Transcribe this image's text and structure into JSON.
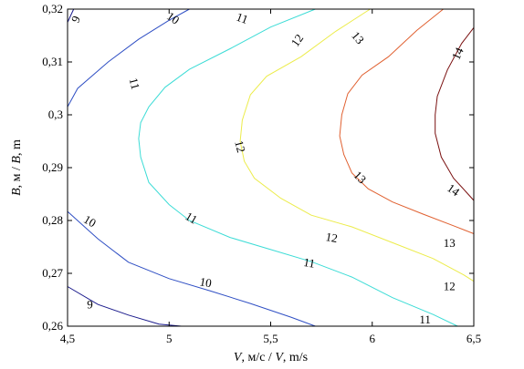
{
  "chart_data": {
    "type": "contour",
    "title": "",
    "xlabel_parts": [
      {
        "text": "V",
        "italic": true
      },
      {
        "text": ", м/с / ",
        "italic": false
      },
      {
        "text": "V",
        "italic": true
      },
      {
        "text": ", m/s",
        "italic": false
      }
    ],
    "ylabel_parts": [
      {
        "text": "B",
        "italic": true
      },
      {
        "text": ", м / ",
        "italic": false
      },
      {
        "text": "B",
        "italic": true
      },
      {
        "text": ", m",
        "italic": false
      }
    ],
    "xlim": [
      4.5,
      6.5
    ],
    "ylim": [
      0.26,
      0.32
    ],
    "x_ticks": [
      {
        "value": 4.5,
        "label": "4,5"
      },
      {
        "value": 5,
        "label": "5"
      },
      {
        "value": 5.5,
        "label": "5,5"
      },
      {
        "value": 6,
        "label": "6"
      },
      {
        "value": 6.5,
        "label": "6,5"
      }
    ],
    "y_ticks": [
      {
        "value": 0.26,
        "label": "0,26"
      },
      {
        "value": 0.27,
        "label": "0,27"
      },
      {
        "value": 0.28,
        "label": "0,28"
      },
      {
        "value": 0.29,
        "label": "0,29"
      },
      {
        "value": 0.3,
        "label": "0,3"
      },
      {
        "value": 0.31,
        "label": "0,31"
      },
      {
        "value": 0.32,
        "label": "0,32"
      }
    ],
    "grid": false,
    "contours": [
      {
        "level": "9",
        "color": "#1a1a8c",
        "segments": [
          [
            [
              4.5,
              0.3175
            ],
            [
              4.53,
              0.32
            ]
          ],
          [
            [
              4.5,
              0.2675
            ],
            [
              4.65,
              0.2641
            ],
            [
              4.8,
              0.2621
            ],
            [
              4.95,
              0.2604
            ],
            [
              5.06,
              0.26
            ]
          ]
        ]
      },
      {
        "level": "10",
        "color": "#2f4fc4",
        "segments": [
          [
            [
              4.5,
              0.3015
            ],
            [
              4.55,
              0.305
            ],
            [
              4.7,
              0.31
            ],
            [
              4.85,
              0.3143
            ],
            [
              5.0,
              0.3179
            ],
            [
              5.1,
              0.32
            ]
          ],
          [
            [
              4.5,
              0.2817
            ],
            [
              4.65,
              0.2765
            ],
            [
              4.8,
              0.2721
            ],
            [
              5.0,
              0.269
            ],
            [
              5.2,
              0.2667
            ],
            [
              5.4,
              0.2643
            ],
            [
              5.6,
              0.2617
            ],
            [
              5.72,
              0.26
            ]
          ]
        ]
      },
      {
        "level": "11",
        "color": "#3cdcd6",
        "segments": [
          [
            [
              5.72,
              0.32
            ],
            [
              5.5,
              0.3166
            ],
            [
              5.3,
              0.3125
            ],
            [
              5.1,
              0.3086
            ],
            [
              4.98,
              0.3052
            ],
            [
              4.9,
              0.3015
            ],
            [
              4.86,
              0.2985
            ],
            [
              4.85,
              0.2955
            ],
            [
              4.86,
              0.292
            ],
            [
              4.9,
              0.2872
            ],
            [
              5.0,
              0.283
            ],
            [
              5.1,
              0.28
            ],
            [
              5.3,
              0.2768
            ],
            [
              5.5,
              0.2745
            ],
            [
              5.7,
              0.2722
            ],
            [
              5.9,
              0.2693
            ],
            [
              6.1,
              0.2654
            ],
            [
              6.3,
              0.2622
            ],
            [
              6.42,
              0.26
            ]
          ]
        ]
      },
      {
        "level": "12",
        "color": "#ecec4a",
        "segments": [
          [
            [
              5.99,
              0.32
            ],
            [
              5.82,
              0.3158
            ],
            [
              5.65,
              0.311
            ],
            [
              5.48,
              0.3073
            ],
            [
              5.4,
              0.3038
            ],
            [
              5.36,
              0.299
            ],
            [
              5.35,
              0.295
            ],
            [
              5.37,
              0.2912
            ],
            [
              5.42,
              0.288
            ],
            [
              5.55,
              0.2842
            ],
            [
              5.7,
              0.281
            ],
            [
              5.9,
              0.2788
            ],
            [
              6.1,
              0.2758
            ],
            [
              6.3,
              0.2728
            ],
            [
              6.45,
              0.2697
            ],
            [
              6.5,
              0.2685
            ]
          ]
        ]
      },
      {
        "level": "13",
        "color": "#e06030",
        "segments": [
          [
            [
              6.35,
              0.32
            ],
            [
              6.22,
              0.316
            ],
            [
              6.08,
              0.311
            ],
            [
              5.95,
              0.3075
            ],
            [
              5.88,
              0.304
            ],
            [
              5.85,
              0.3
            ],
            [
              5.84,
              0.296
            ],
            [
              5.86,
              0.2925
            ],
            [
              5.9,
              0.289
            ],
            [
              5.98,
              0.286
            ],
            [
              6.1,
              0.2835
            ],
            [
              6.25,
              0.2812
            ],
            [
              6.4,
              0.279
            ],
            [
              6.5,
              0.2775
            ]
          ]
        ]
      },
      {
        "level": "14",
        "color": "#7a1010",
        "segments": [
          [
            [
              6.5,
              0.3165
            ],
            [
              6.44,
              0.3135
            ],
            [
              6.37,
              0.3085
            ],
            [
              6.32,
              0.3035
            ],
            [
              6.31,
              0.3
            ],
            [
              6.31,
              0.2965
            ],
            [
              6.34,
              0.292
            ],
            [
              6.4,
              0.288
            ],
            [
              6.46,
              0.2855
            ],
            [
              6.5,
              0.2838
            ]
          ]
        ]
      }
    ],
    "contour_labels": [
      {
        "text": "9",
        "x": 4.54,
        "y": 0.3181,
        "angle": -65
      },
      {
        "text": "10",
        "x": 5.02,
        "y": 0.3183,
        "angle": 35
      },
      {
        "text": "11",
        "x": 5.36,
        "y": 0.3183,
        "angle": 20
      },
      {
        "text": "12",
        "x": 5.63,
        "y": 0.3141,
        "angle": -55
      },
      {
        "text": "13",
        "x": 5.93,
        "y": 0.3146,
        "angle": 50
      },
      {
        "text": "14",
        "x": 6.42,
        "y": 0.3116,
        "angle": -65
      },
      {
        "text": "11",
        "x": 4.83,
        "y": 0.3059,
        "angle": 75
      },
      {
        "text": "12",
        "x": 5.35,
        "y": 0.294,
        "angle": 75
      },
      {
        "text": "13",
        "x": 5.94,
        "y": 0.2882,
        "angle": 45
      },
      {
        "text": "14",
        "x": 6.4,
        "y": 0.2858,
        "angle": 35
      },
      {
        "text": "11",
        "x": 5.11,
        "y": 0.2805,
        "angle": 30
      },
      {
        "text": "10",
        "x": 4.61,
        "y": 0.2799,
        "angle": 30
      },
      {
        "text": "12",
        "x": 5.8,
        "y": 0.2768,
        "angle": 10
      },
      {
        "text": "13",
        "x": 6.38,
        "y": 0.2758,
        "angle": 0
      },
      {
        "text": "11",
        "x": 5.69,
        "y": 0.272,
        "angle": 10
      },
      {
        "text": "12",
        "x": 6.38,
        "y": 0.2676,
        "angle": 0
      },
      {
        "text": "10",
        "x": 5.18,
        "y": 0.2683,
        "angle": 10
      },
      {
        "text": "9",
        "x": 4.61,
        "y": 0.2641,
        "angle": 0
      },
      {
        "text": "11",
        "x": 6.26,
        "y": 0.2613,
        "angle": 0
      }
    ]
  }
}
